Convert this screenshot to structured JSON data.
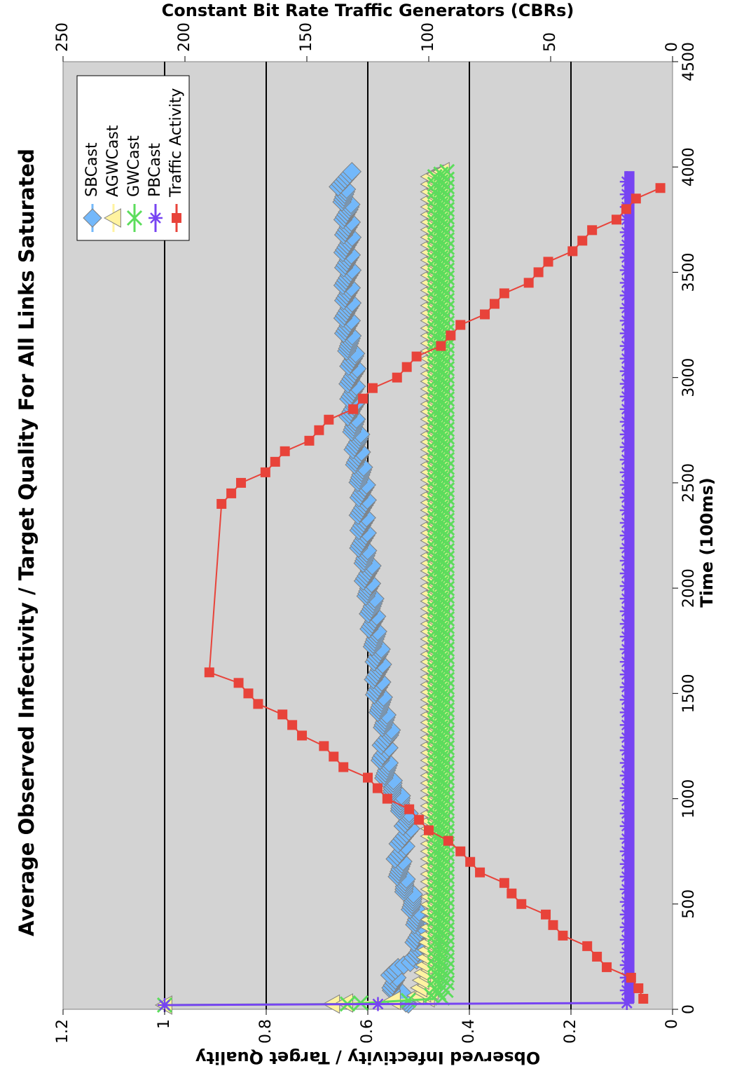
{
  "chart_data": {
    "type": "line",
    "title": "Average Observed Infectivity / Target Quality For All Links Saturated",
    "xlabel": "Time (100ms)",
    "ylabel": "Observed Infectivity / Target Quality",
    "y2label": "Constant Bit Rate Traffic Generators (CBRs)",
    "xlim": [
      0,
      4500
    ],
    "ylim": [
      0,
      1.2
    ],
    "y2lim": [
      0,
      250
    ],
    "x_ticks": [
      "0",
      "500",
      "1000",
      "1500",
      "2000",
      "2500",
      "3000",
      "3500",
      "4000",
      "4500"
    ],
    "y_ticks": [
      "0",
      "0.2",
      "0.4",
      "0.6",
      "0.8",
      "1",
      "1.2"
    ],
    "y2_ticks": [
      "0",
      "50",
      "100",
      "150",
      "200",
      "250"
    ],
    "grid": true,
    "legend_position": "top-right",
    "series": [
      {
        "name": "SBCast",
        "color": "#73b8fa",
        "marker": "diamond",
        "axis": "primary",
        "points": [
          [
            25,
            0.52
          ],
          [
            50,
            0.53
          ],
          [
            100,
            0.55
          ],
          [
            150,
            0.55
          ],
          [
            200,
            0.54
          ],
          [
            250,
            0.5
          ],
          [
            300,
            0.5
          ],
          [
            400,
            0.5
          ],
          [
            500,
            0.51
          ],
          [
            600,
            0.53
          ],
          [
            700,
            0.54
          ],
          [
            800,
            0.53
          ],
          [
            900,
            0.52
          ],
          [
            1000,
            0.54
          ],
          [
            1100,
            0.56
          ],
          [
            1200,
            0.57
          ],
          [
            1300,
            0.56
          ],
          [
            1400,
            0.57
          ],
          [
            1500,
            0.58
          ],
          [
            1600,
            0.58
          ],
          [
            1700,
            0.58
          ],
          [
            1800,
            0.59
          ],
          [
            1900,
            0.59
          ],
          [
            2000,
            0.6
          ],
          [
            2100,
            0.6
          ],
          [
            2200,
            0.61
          ],
          [
            2300,
            0.61
          ],
          [
            2400,
            0.61
          ],
          [
            2500,
            0.61
          ],
          [
            2600,
            0.62
          ],
          [
            2700,
            0.62
          ],
          [
            2800,
            0.63
          ],
          [
            2900,
            0.63
          ],
          [
            3000,
            0.63
          ],
          [
            3100,
            0.63
          ],
          [
            3200,
            0.64
          ],
          [
            3300,
            0.64
          ],
          [
            3400,
            0.64
          ],
          [
            3500,
            0.64
          ],
          [
            3600,
            0.64
          ],
          [
            3700,
            0.64
          ],
          [
            3800,
            0.64
          ],
          [
            3900,
            0.65
          ],
          [
            3980,
            0.64
          ]
        ]
      },
      {
        "name": "AGWCast",
        "color": "#fff3a0",
        "marker": "triangle",
        "axis": "primary",
        "points": [
          [
            20,
            1.0
          ],
          [
            25,
            0.67
          ],
          [
            50,
            0.5
          ],
          [
            100,
            0.49
          ],
          [
            200,
            0.48
          ],
          [
            400,
            0.47
          ],
          [
            800,
            0.47
          ],
          [
            1200,
            0.47
          ],
          [
            1600,
            0.47
          ],
          [
            2000,
            0.47
          ],
          [
            2400,
            0.47
          ],
          [
            2800,
            0.47
          ],
          [
            3200,
            0.47
          ],
          [
            3600,
            0.47
          ],
          [
            3980,
            0.47
          ]
        ]
      },
      {
        "name": "GWCast",
        "color": "#5cdd5c",
        "marker": "x",
        "axis": "primary",
        "points": [
          [
            20,
            1.0
          ],
          [
            25,
            0.64
          ],
          [
            50,
            0.47
          ],
          [
            100,
            0.46
          ],
          [
            200,
            0.46
          ],
          [
            400,
            0.46
          ],
          [
            800,
            0.46
          ],
          [
            1200,
            0.46
          ],
          [
            1600,
            0.46
          ],
          [
            2000,
            0.46
          ],
          [
            2400,
            0.46
          ],
          [
            2800,
            0.46
          ],
          [
            3200,
            0.46
          ],
          [
            3600,
            0.46
          ],
          [
            3980,
            0.46
          ]
        ]
      },
      {
        "name": "PBCast",
        "color": "#7744f2",
        "marker": "star",
        "axis": "primary",
        "points": [
          [
            20,
            1.0
          ],
          [
            25,
            0.58
          ],
          [
            30,
            0.09
          ],
          [
            100,
            0.09
          ],
          [
            500,
            0.09
          ],
          [
            1000,
            0.09
          ],
          [
            1500,
            0.09
          ],
          [
            2000,
            0.09
          ],
          [
            2500,
            0.09
          ],
          [
            3000,
            0.09
          ],
          [
            3500,
            0.09
          ],
          [
            3980,
            0.09
          ]
        ]
      },
      {
        "name": "Traffic Activity",
        "color": "#e8433a",
        "marker": "square",
        "axis": "secondary",
        "points": [
          [
            50,
            12
          ],
          [
            100,
            14
          ],
          [
            150,
            17
          ],
          [
            200,
            27
          ],
          [
            250,
            31
          ],
          [
            300,
            35
          ],
          [
            350,
            45
          ],
          [
            400,
            49
          ],
          [
            450,
            52
          ],
          [
            500,
            62
          ],
          [
            550,
            66
          ],
          [
            600,
            69
          ],
          [
            650,
            79
          ],
          [
            700,
            83
          ],
          [
            750,
            87
          ],
          [
            800,
            92
          ],
          [
            850,
            100
          ],
          [
            900,
            104
          ],
          [
            950,
            108
          ],
          [
            1000,
            117
          ],
          [
            1050,
            121
          ],
          [
            1100,
            125
          ],
          [
            1150,
            135
          ],
          [
            1200,
            139
          ],
          [
            1250,
            143
          ],
          [
            1300,
            152
          ],
          [
            1350,
            156
          ],
          [
            1400,
            160
          ],
          [
            1450,
            170
          ],
          [
            1500,
            174
          ],
          [
            1550,
            178
          ],
          [
            1600,
            190
          ],
          [
            2400,
            185
          ],
          [
            2450,
            181
          ],
          [
            2500,
            177
          ],
          [
            2550,
            167
          ],
          [
            2600,
            163
          ],
          [
            2650,
            159
          ],
          [
            2700,
            149
          ],
          [
            2750,
            145
          ],
          [
            2800,
            141
          ],
          [
            2850,
            131
          ],
          [
            2900,
            127
          ],
          [
            2950,
            123
          ],
          [
            3000,
            113
          ],
          [
            3050,
            109
          ],
          [
            3100,
            105
          ],
          [
            3150,
            95
          ],
          [
            3200,
            91
          ],
          [
            3250,
            87
          ],
          [
            3300,
            77
          ],
          [
            3350,
            73
          ],
          [
            3400,
            69
          ],
          [
            3450,
            59
          ],
          [
            3500,
            55
          ],
          [
            3550,
            51
          ],
          [
            3600,
            41
          ],
          [
            3650,
            37
          ],
          [
            3700,
            33
          ],
          [
            3750,
            23
          ],
          [
            3800,
            19
          ],
          [
            3850,
            15
          ],
          [
            3900,
            5
          ]
        ]
      }
    ]
  }
}
